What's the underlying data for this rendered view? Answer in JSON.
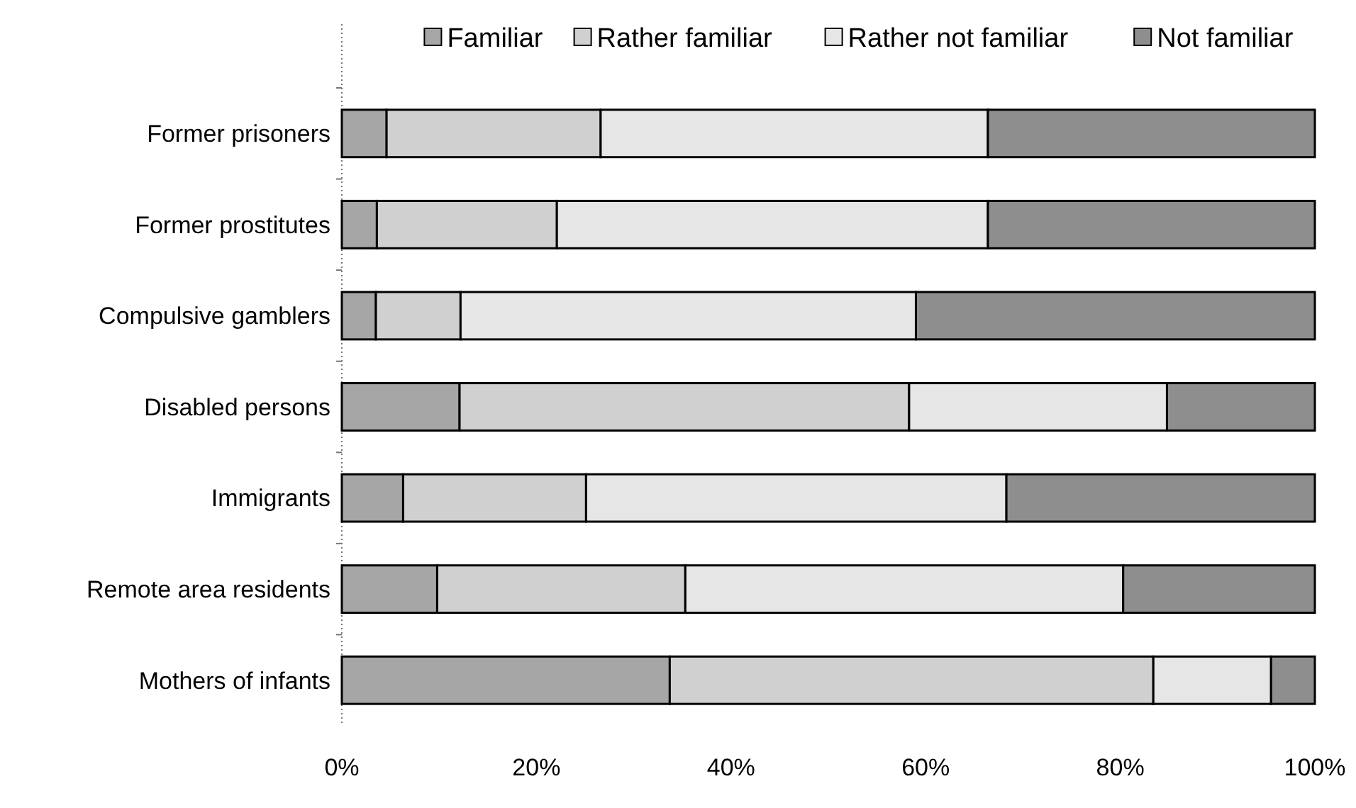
{
  "chart_data": {
    "type": "bar",
    "orientation": "horizontal",
    "stacked": true,
    "legend": "top right",
    "grid": false,
    "categories": [
      "Former prisoners",
      "Former prostitutes",
      "Compulsive gamblers",
      "Disabled persons",
      "Immigrants",
      "Remote area residents",
      "Mothers of infants"
    ],
    "series": [
      {
        "name": "Familiar",
        "color": "#a6a6a6",
        "values": [
          4.6,
          3.6,
          3.5,
          12.1,
          6.3,
          9.8,
          33.7
        ]
      },
      {
        "name": "Rather familiar",
        "color": "#d0d0d0",
        "values": [
          22.0,
          18.5,
          8.7,
          46.2,
          18.8,
          25.5,
          49.7
        ]
      },
      {
        "name": "Rather not familiar",
        "color": "#e6e6e6",
        "values": [
          39.8,
          44.3,
          46.8,
          26.5,
          43.2,
          45.0,
          12.1
        ]
      },
      {
        "name": "Not familiar",
        "color": "#8e8e8e",
        "values": [
          33.6,
          33.6,
          41.0,
          15.2,
          31.7,
          19.7,
          4.5
        ]
      }
    ],
    "xlim": [
      0,
      100
    ],
    "xticks": [
      {
        "value": 0,
        "label": "0%"
      },
      {
        "value": 20,
        "label": "20%"
      },
      {
        "value": 40,
        "label": "40%"
      },
      {
        "value": 60,
        "label": "60%"
      },
      {
        "value": 80,
        "label": "80%"
      },
      {
        "value": 100,
        "label": "100%"
      }
    ]
  }
}
